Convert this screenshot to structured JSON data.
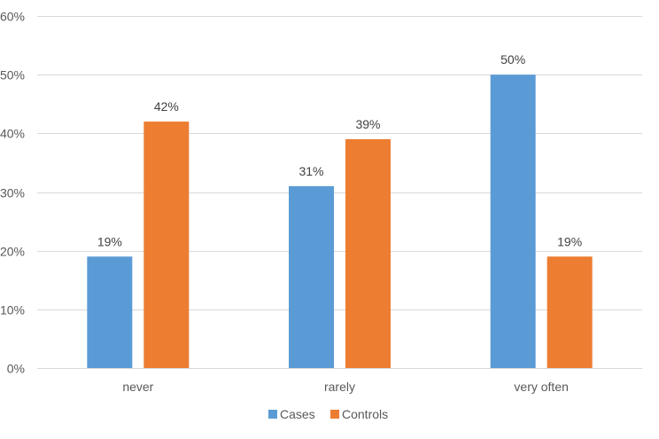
{
  "chart_data": {
    "type": "bar",
    "categories": [
      "never",
      "rarely",
      "very often"
    ],
    "series": [
      {
        "name": "Cases",
        "values": [
          19,
          31,
          50
        ],
        "color": "#5b9bd5"
      },
      {
        "name": "Controls",
        "values": [
          42,
          39,
          19
        ],
        "color": "#ed7d31"
      }
    ],
    "ylim": [
      0,
      60
    ],
    "yticks": [
      0,
      10,
      20,
      30,
      40,
      50,
      60
    ],
    "tick_suffix": "%",
    "grid": true,
    "legend_position": "bottom-center",
    "data_labels": true
  }
}
